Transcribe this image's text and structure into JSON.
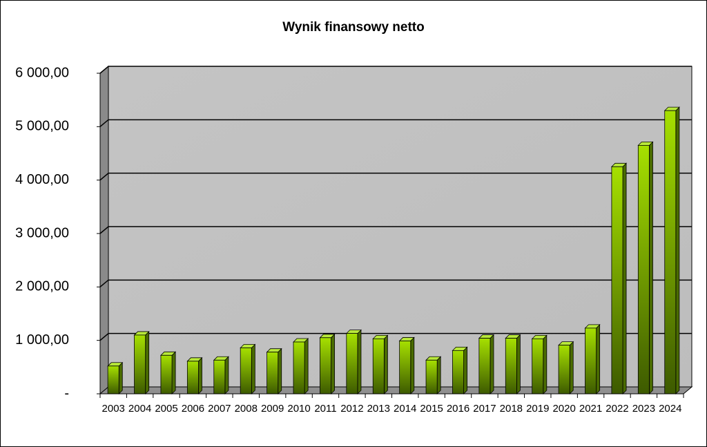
{
  "chart_data": {
    "type": "bar3d",
    "title": "Wynik finansowy netto",
    "categories": [
      "2003",
      "2004",
      "2005",
      "2006",
      "2007",
      "2008",
      "2009",
      "2010",
      "2011",
      "2012",
      "2013",
      "2014",
      "2015",
      "2016",
      "2017",
      "2018",
      "2019",
      "2020",
      "2021",
      "2022",
      "2023",
      "2024"
    ],
    "values": [
      520,
      1100,
      720,
      610,
      630,
      860,
      780,
      970,
      1050,
      1130,
      1030,
      990,
      630,
      810,
      1040,
      1040,
      1030,
      910,
      1230,
      4250,
      4650,
      5300
    ],
    "color": "#8fc400",
    "ylim": [
      0,
      6000
    ],
    "yticks": [
      {
        "value": 0,
        "label": "-"
      },
      {
        "value": 1000,
        "label": "1 000,00"
      },
      {
        "value": 2000,
        "label": "2 000,00"
      },
      {
        "value": 3000,
        "label": "3 000,00"
      },
      {
        "value": 4000,
        "label": "4 000,00"
      },
      {
        "value": 5000,
        "label": "5 000,00"
      },
      {
        "value": 6000,
        "label": "6 000,00"
      }
    ],
    "grid": true
  }
}
